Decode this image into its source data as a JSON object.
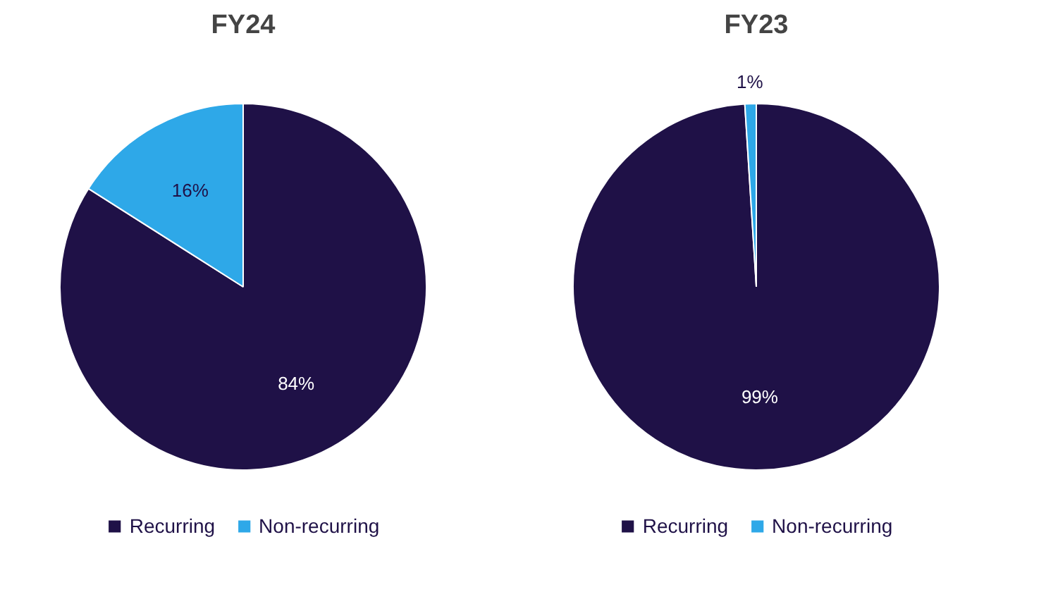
{
  "chart_data": [
    {
      "type": "pie",
      "title": "FY24",
      "categories": [
        "Recurring",
        "Non-recurring"
      ],
      "values": [
        84,
        16
      ],
      "colors": [
        "#1f1147",
        "#2ea8e8"
      ],
      "value_labels": [
        "84%",
        "16%"
      ],
      "legend": "bottom"
    },
    {
      "type": "pie",
      "title": "FY23",
      "categories": [
        "Recurring",
        "Non-recurring"
      ],
      "values": [
        99,
        1
      ],
      "colors": [
        "#1f1147",
        "#2ea8e8"
      ],
      "value_labels": [
        "99%",
        "1%"
      ],
      "legend": "bottom"
    }
  ]
}
